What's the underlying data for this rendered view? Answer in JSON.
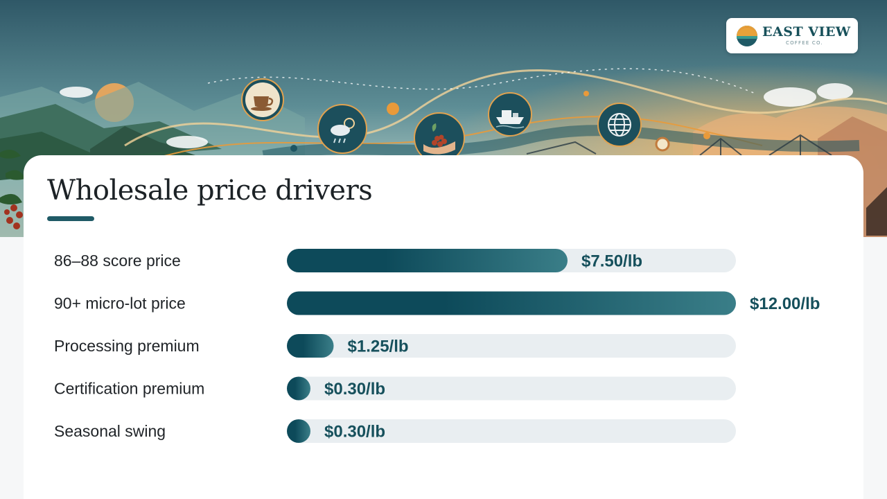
{
  "brand": {
    "name": "EAST VIEW",
    "tagline": "COFFEE CO.",
    "logo_colors": [
      "#e8a23a",
      "#d2542e",
      "#3a9b91",
      "#1f5a66"
    ]
  },
  "banner": {
    "icons": [
      "coffee-cup-icon",
      "weather-icon",
      "coffee-cherries-icon",
      "cargo-ship-icon",
      "globe-icon"
    ],
    "sky_colors": [
      "#2f5867",
      "#6f9ea3",
      "#c9d8cc",
      "#f0b070"
    ],
    "accent": "#e99a3a"
  },
  "chart_data": {
    "type": "bar",
    "orientation": "horizontal",
    "title": "Wholesale price drivers",
    "categories": [
      "86–88 score price",
      "90+ micro-lot price",
      "Processing premium",
      "Certification premium",
      "Seasonal swing"
    ],
    "values": [
      7.5,
      12.0,
      1.25,
      0.3,
      0.3
    ],
    "value_labels": [
      "$7.50/lb",
      "$12.00/lb",
      "$1.25/lb",
      "$0.30/lb",
      "$0.30/lb"
    ],
    "xlim": [
      0,
      12
    ],
    "colors": {
      "bar_start": "#0d4a5a",
      "bar_end": "#3a7e88",
      "track": "#e9eef1",
      "label": "#16505c"
    },
    "grid": false,
    "legend": "none"
  }
}
